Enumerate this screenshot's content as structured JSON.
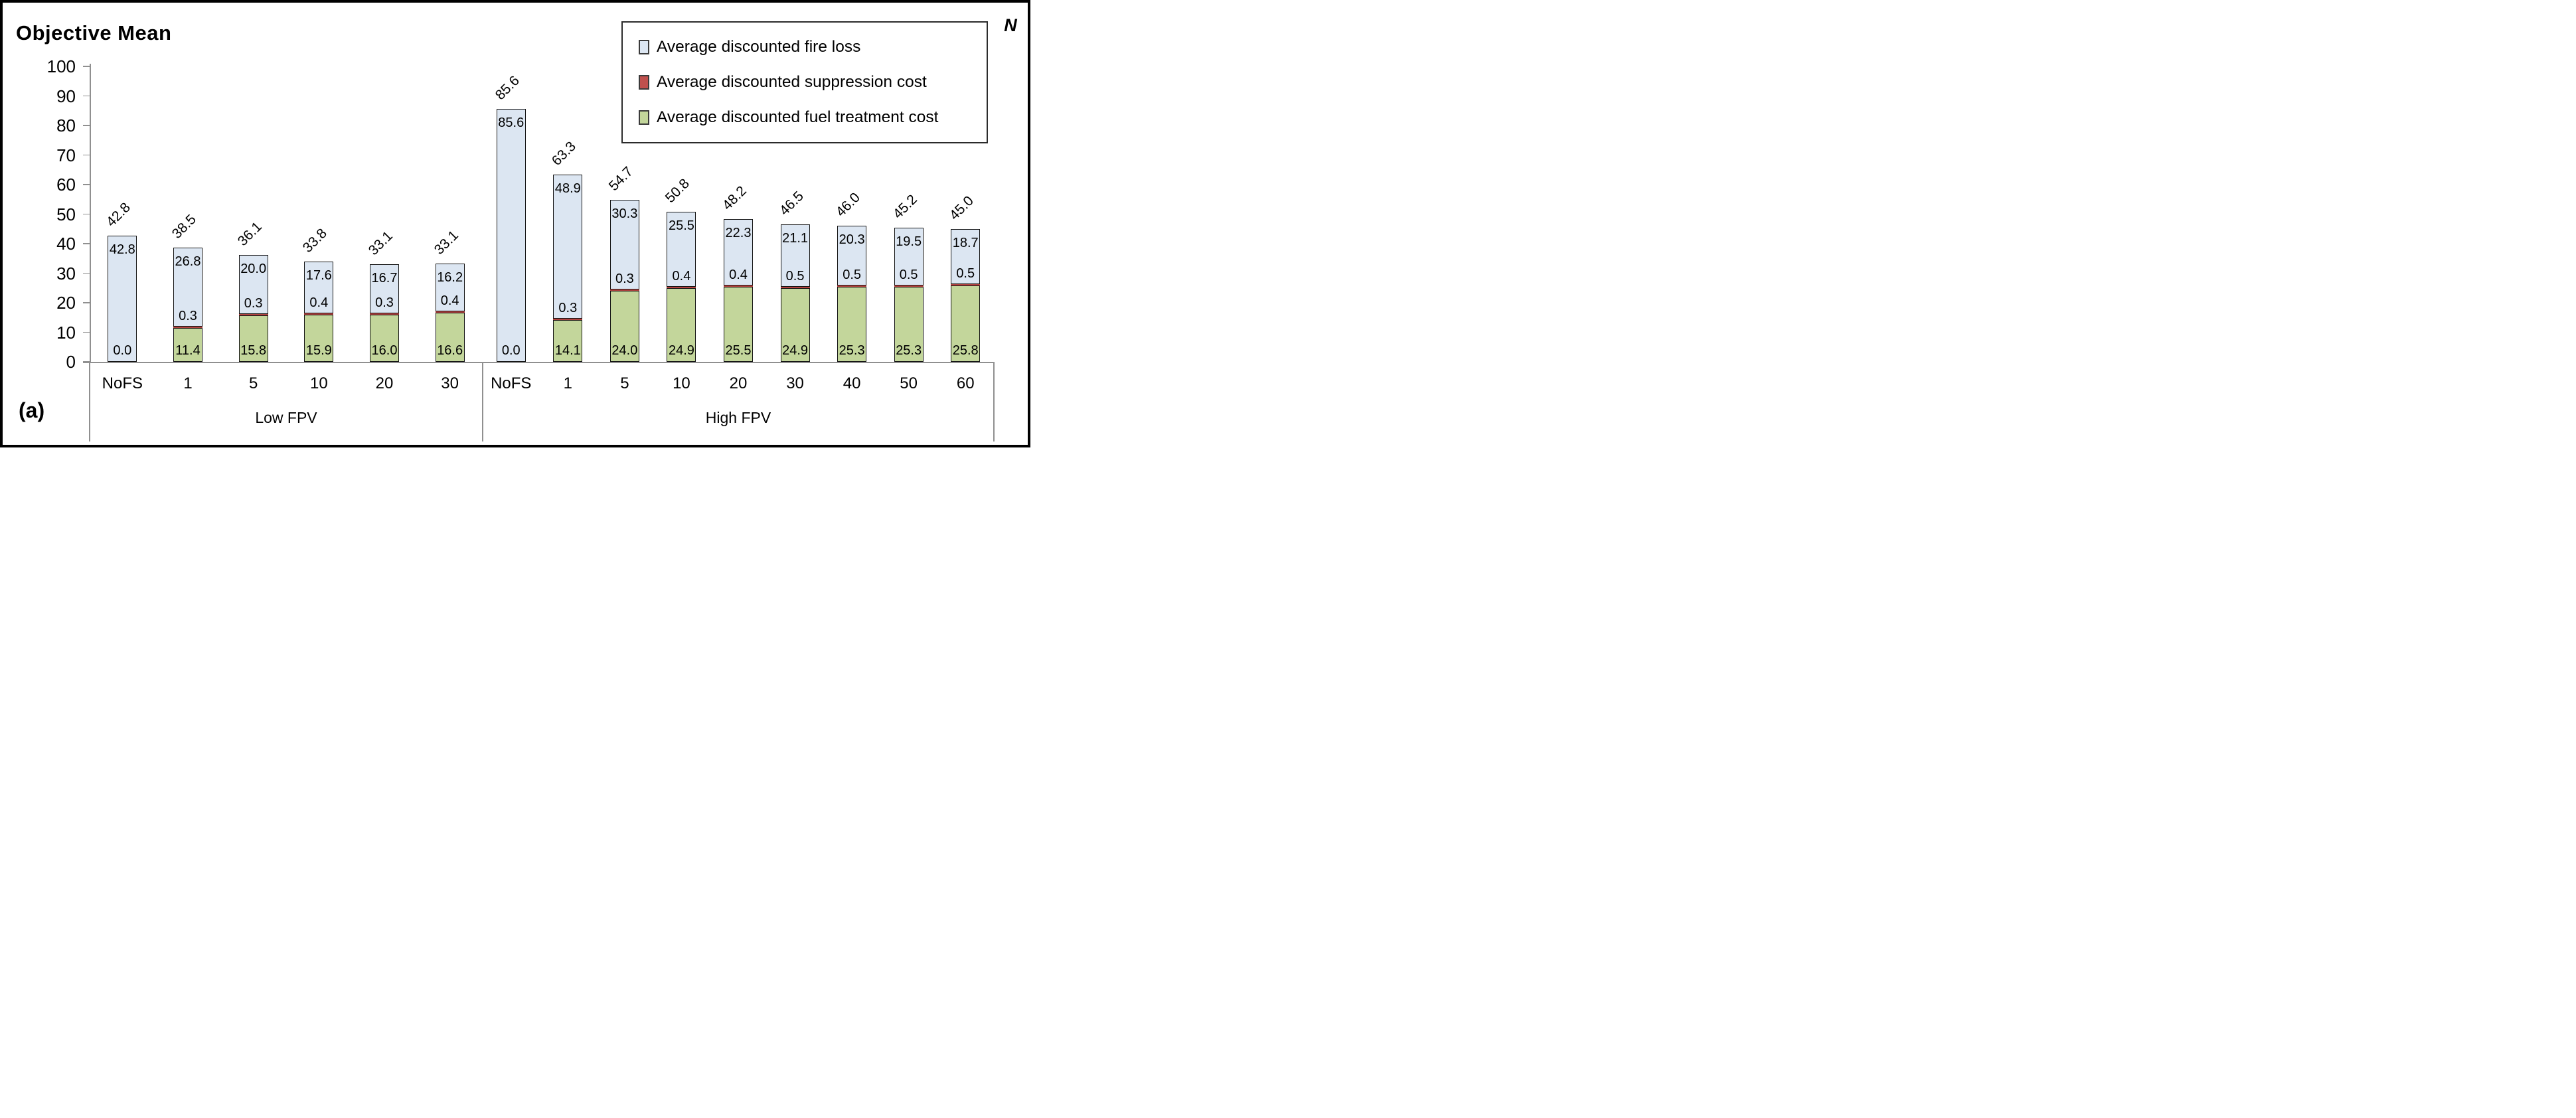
{
  "figure": {
    "title": "Objective Mean",
    "corner_label": "(a)",
    "axis_unit_label": "N"
  },
  "chart_data": {
    "type": "bar",
    "stacked": true,
    "title": "Objective Mean",
    "xlabel": "N",
    "ylabel": "",
    "ylim": [
      0,
      100
    ],
    "yticks": [
      0,
      10,
      20,
      30,
      40,
      50,
      60,
      70,
      80,
      90,
      100
    ],
    "grid": false,
    "legend_position": "top-right",
    "value_label_decimals": 1,
    "legend": [
      {
        "key": "fire_loss",
        "label": "Average discounted fire loss",
        "color": "#dce6f2"
      },
      {
        "key": "suppression",
        "label": "Average discounted suppression cost",
        "color": "#c0504d"
      },
      {
        "key": "fuel_treatment",
        "label": "Average discounted fuel treatment cost",
        "color": "#c3d69b"
      }
    ],
    "stack_order_bottom_to_top": [
      "fuel_treatment",
      "suppression",
      "fire_loss"
    ],
    "groups": [
      {
        "label": "Low FPV",
        "bars": [
          {
            "category": "NoFS",
            "fuel_treatment": 0.0,
            "suppression": 0.0,
            "fire_loss": 42.8,
            "total": 42.8
          },
          {
            "category": "1",
            "fuel_treatment": 11.4,
            "suppression": 0.3,
            "fire_loss": 26.8,
            "total": 38.5
          },
          {
            "category": "5",
            "fuel_treatment": 15.8,
            "suppression": 0.3,
            "fire_loss": 20.0,
            "total": 36.1
          },
          {
            "category": "10",
            "fuel_treatment": 15.9,
            "suppression": 0.4,
            "fire_loss": 17.6,
            "total": 33.8
          },
          {
            "category": "20",
            "fuel_treatment": 16.0,
            "suppression": 0.3,
            "fire_loss": 16.7,
            "total": 33.1
          },
          {
            "category": "30",
            "fuel_treatment": 16.6,
            "suppression": 0.4,
            "fire_loss": 16.2,
            "total": 33.1
          }
        ]
      },
      {
        "label": "High FPV",
        "bars": [
          {
            "category": "NoFS",
            "fuel_treatment": 0.0,
            "suppression": 0.0,
            "fire_loss": 85.6,
            "total": 85.6
          },
          {
            "category": "1",
            "fuel_treatment": 14.1,
            "suppression": 0.3,
            "fire_loss": 48.9,
            "total": 63.3
          },
          {
            "category": "5",
            "fuel_treatment": 24.0,
            "suppression": 0.3,
            "fire_loss": 30.3,
            "total": 54.7
          },
          {
            "category": "10",
            "fuel_treatment": 24.9,
            "suppression": 0.4,
            "fire_loss": 25.5,
            "total": 50.8
          },
          {
            "category": "20",
            "fuel_treatment": 25.5,
            "suppression": 0.4,
            "fire_loss": 22.3,
            "total": 48.2
          },
          {
            "category": "30",
            "fuel_treatment": 24.9,
            "suppression": 0.5,
            "fire_loss": 21.1,
            "total": 46.5
          },
          {
            "category": "40",
            "fuel_treatment": 25.3,
            "suppression": 0.5,
            "fire_loss": 20.3,
            "total": 46.0
          },
          {
            "category": "50",
            "fuel_treatment": 25.3,
            "suppression": 0.5,
            "fire_loss": 19.5,
            "total": 45.2
          },
          {
            "category": "60",
            "fuel_treatment": 25.8,
            "suppression": 0.5,
            "fire_loss": 18.7,
            "total": 45.0
          }
        ]
      }
    ],
    "colors": {
      "bar_border": "#141414",
      "axis": "#909090",
      "suppression_band": "#b3423f"
    }
  }
}
